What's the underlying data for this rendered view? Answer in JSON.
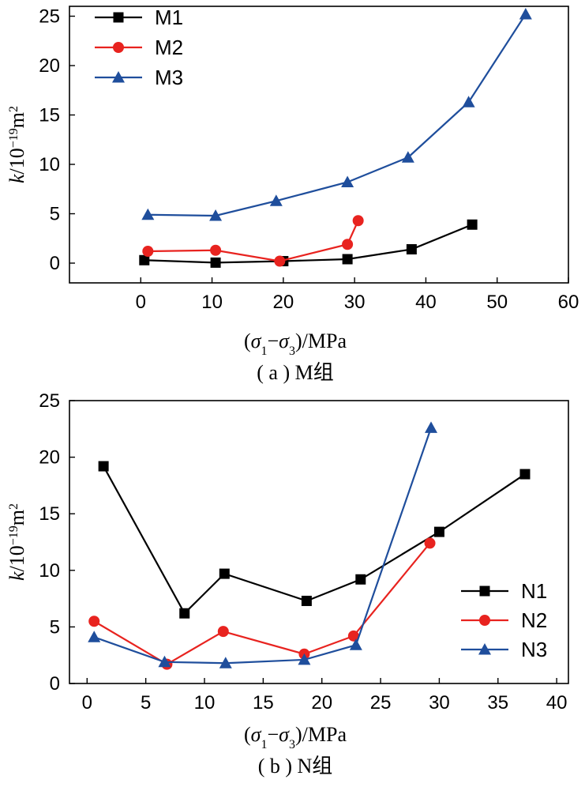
{
  "chart_data": [
    {
      "type": "line",
      "caption": "( a ) M组",
      "xlabel": "(σ1−σ3)/MPa",
      "ylabel": "k/10⁻¹⁹m²",
      "xlim": [
        -10,
        60
      ],
      "ylim": [
        -2,
        26
      ],
      "xticks": [
        0,
        10,
        20,
        30,
        40,
        50,
        60
      ],
      "yticks": [
        0,
        5,
        10,
        15,
        20,
        25
      ],
      "legend_position": "top-left",
      "series": [
        {
          "name": "M1",
          "color": "#000000",
          "marker": "square",
          "x": [
            0.5,
            10.5,
            20,
            29,
            38,
            46.5
          ],
          "y": [
            0.3,
            0.05,
            0.2,
            0.4,
            1.4,
            3.9
          ]
        },
        {
          "name": "M2",
          "color": "#e8231f",
          "marker": "circle",
          "x": [
            1,
            10.5,
            19.5,
            29,
            30.5
          ],
          "y": [
            1.2,
            1.3,
            0.2,
            1.9,
            4.3
          ]
        },
        {
          "name": "M3",
          "color": "#1f4e9c",
          "marker": "triangle",
          "x": [
            1,
            10.5,
            19,
            29,
            37.5,
            46,
            54
          ],
          "y": [
            4.9,
            4.8,
            6.3,
            8.2,
            10.7,
            16.3,
            25.2
          ]
        }
      ]
    },
    {
      "type": "line",
      "caption": "( b ) N组",
      "xlabel": "(σ1−σ3)/MPa",
      "ylabel": "k/10⁻¹⁹m²",
      "xlim": [
        -1.5,
        41
      ],
      "ylim": [
        0,
        25
      ],
      "xticks": [
        0,
        5,
        10,
        15,
        20,
        25,
        30,
        35,
        40
      ],
      "yticks": [
        0,
        5,
        10,
        15,
        20,
        25
      ],
      "legend_position": "bottom-right",
      "series": [
        {
          "name": "N1",
          "color": "#000000",
          "marker": "square",
          "x": [
            1.4,
            8.3,
            11.7,
            18.7,
            23.3,
            30,
            37.3
          ],
          "y": [
            19.2,
            6.2,
            9.7,
            7.3,
            9.2,
            13.4,
            18.5
          ]
        },
        {
          "name": "N2",
          "color": "#e8231f",
          "marker": "circle",
          "x": [
            0.6,
            6.8,
            11.6,
            18.5,
            22.7,
            29.2
          ],
          "y": [
            5.5,
            1.7,
            4.6,
            2.6,
            4.2,
            12.4
          ]
        },
        {
          "name": "N3",
          "color": "#1f4e9c",
          "marker": "triangle",
          "x": [
            0.6,
            6.6,
            11.8,
            18.5,
            22.9,
            29.3
          ],
          "y": [
            4.1,
            1.9,
            1.8,
            2.1,
            3.4,
            22.6
          ]
        }
      ]
    }
  ]
}
